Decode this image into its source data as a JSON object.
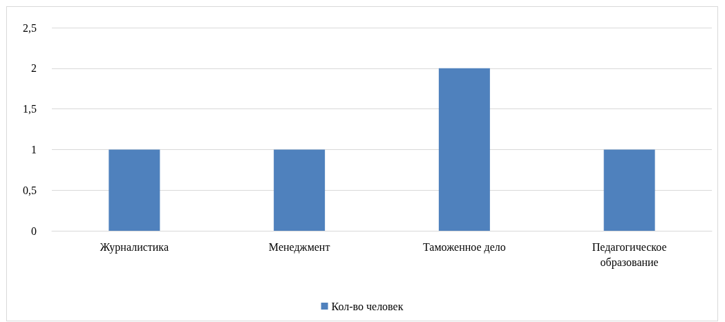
{
  "chart_data": {
    "type": "bar",
    "categories": [
      "Журналистика",
      "Менеджмент",
      "Таможенное дело",
      "Педагогическое образование"
    ],
    "series": [
      {
        "name": "Кол-во человек",
        "color": "#4f81bd",
        "values": [
          1,
          1,
          2,
          1
        ]
      }
    ],
    "ylim": [
      0,
      2.5
    ],
    "yticks": [
      0,
      {
        "value": 0.5,
        "label": "0,5"
      },
      1,
      {
        "value": 1.5,
        "label": "1,5"
      },
      2,
      {
        "value": 2.5,
        "label": "2,5"
      }
    ],
    "grid": "y",
    "legend": "bottom"
  }
}
